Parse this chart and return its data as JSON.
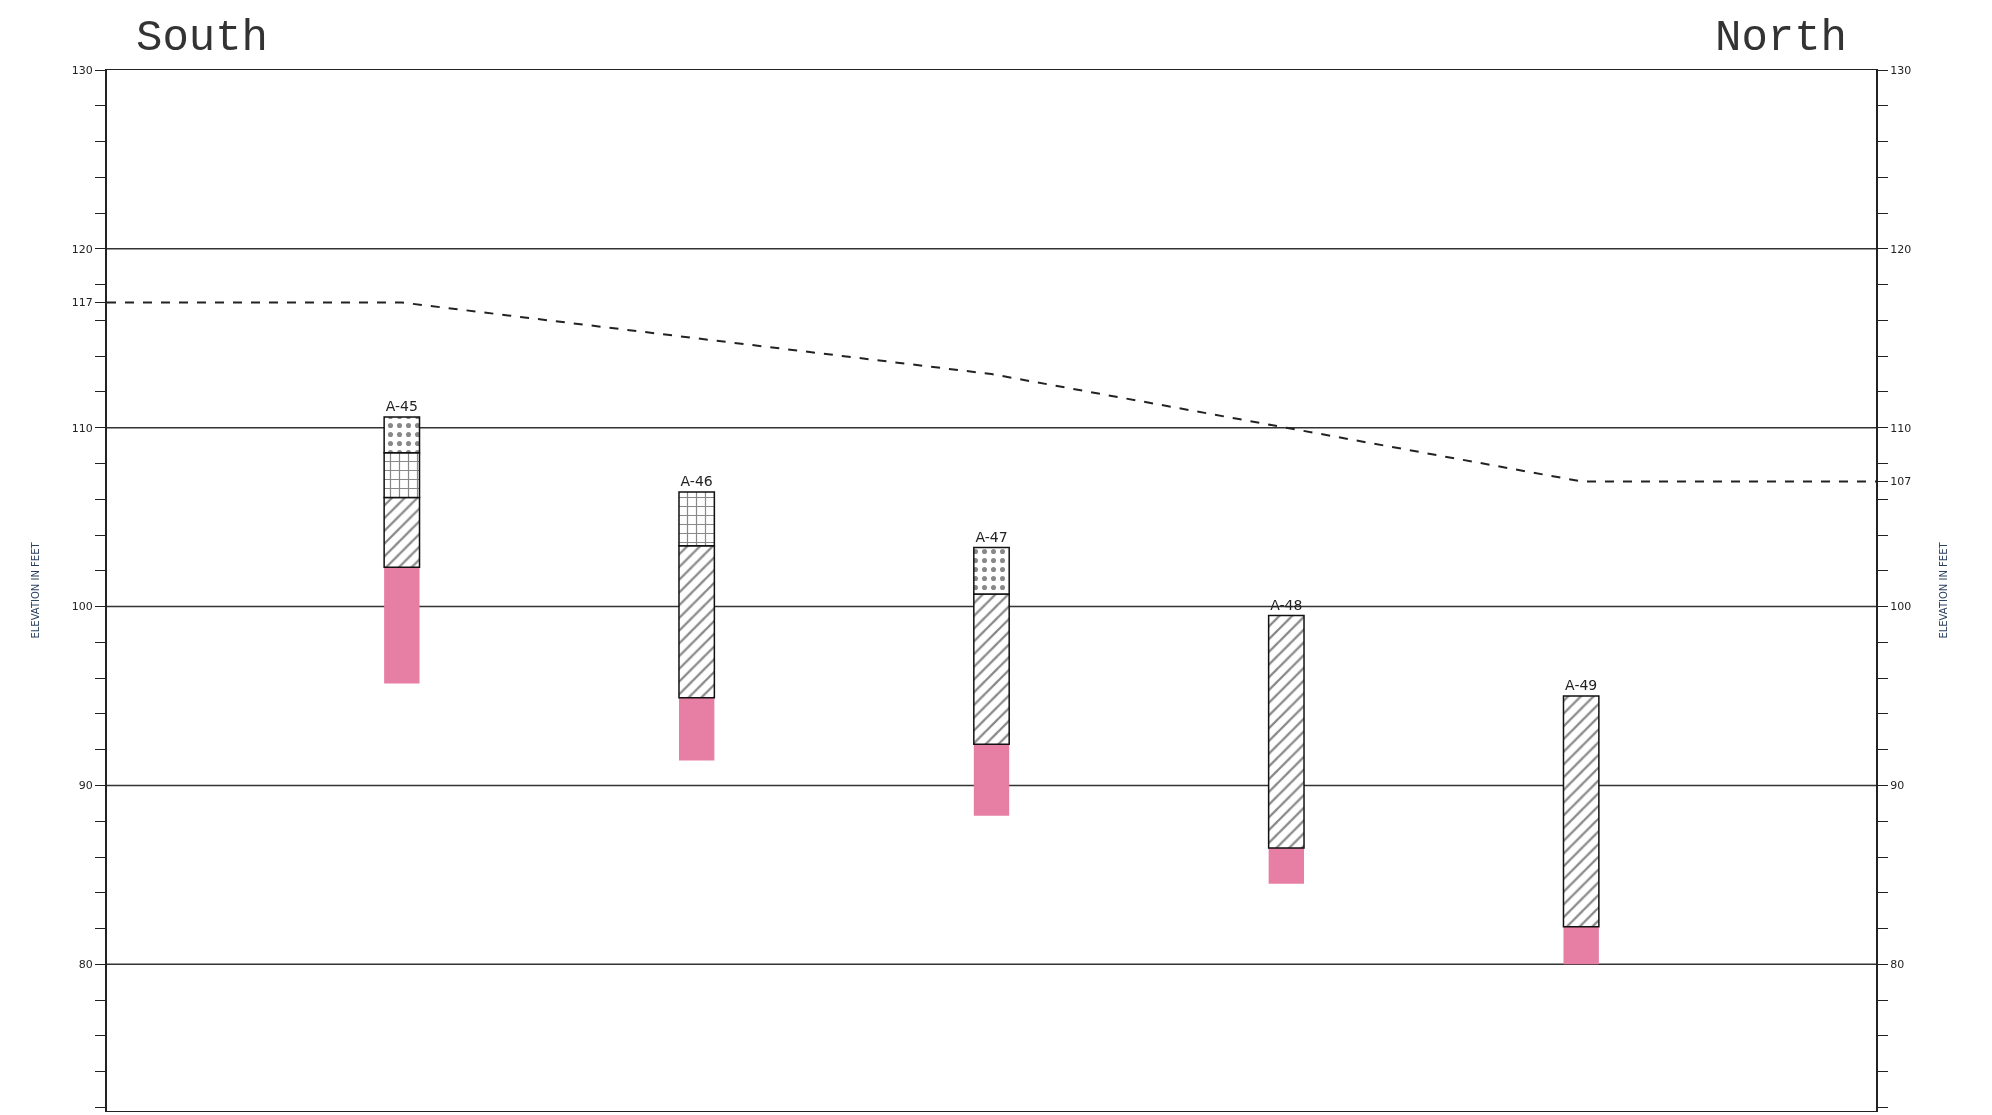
{
  "chart_data": {
    "type": "bar",
    "categories": [
      null,
      null,
      null,
      null,
      null,
      null,
      null
    ],
    "series": [
      {
        "color": "#e77ea3",
        "base": [
          null,
          95.7,
          91.4,
          88.3,
          84.5,
          80,
          null
        ],
        "values": [
          null,
          6.5,
          3.5,
          4.0,
          2.0,
          2.1,
          null
        ]
      },
      {
        "color": "#111111",
        "base": [
          null,
          102.2,
          94.9,
          92.3,
          86.5,
          82.1,
          null
        ],
        "values": [
          null,
          3.9,
          8.5,
          8.4,
          13.0,
          12.9,
          null
        ],
        "value_labels": [
          null,
          null,
          null,
          null,
          "A-48",
          "A-49",
          null
        ]
      },
      {
        "color": "#111111",
        "base": [
          null,
          106.1,
          103.4,
          null,
          null,
          null,
          null
        ],
        "values": [
          null,
          2.5,
          3.0,
          null,
          null,
          null,
          null
        ],
        "value_labels": [
          null,
          null,
          "A-46",
          null,
          null,
          null,
          null
        ]
      },
      {
        "color": "#111111",
        "base": [
          null,
          108.6,
          null,
          100.7,
          null,
          null,
          null
        ],
        "values": [
          null,
          2.0,
          null,
          2.6,
          null,
          null,
          null
        ],
        "value_labels": [
          null,
          "A-45",
          null,
          "A-47",
          null,
          null,
          null
        ]
      },
      {
        "type": "line",
        "line_style": "dashed",
        "marker": "none",
        "color": "#222222",
        "values": [
          117,
          117,
          115,
          113,
          110,
          107,
          107
        ]
      }
    ],
    "annotations": [
      "South",
      "North"
    ],
    "ylabel": "ELEVATION IN FEET",
    "y2label": "ELEVATION IN FEET",
    "ylim": [
      71.8,
      130
    ],
    "y2lim": [
      71.8,
      130
    ],
    "yticks": [
      {
        "value": 72,
        "label": null
      },
      {
        "value": 74,
        "label": null
      },
      {
        "value": 76,
        "label": null
      },
      {
        "value": 78,
        "label": null
      },
      80,
      {
        "value": 82,
        "label": null
      },
      {
        "value": 84,
        "label": null
      },
      {
        "value": 86,
        "label": null
      },
      {
        "value": 88,
        "label": null
      },
      90,
      {
        "value": 92,
        "label": null
      },
      {
        "value": 94,
        "label": null
      },
      {
        "value": 96,
        "label": null
      },
      {
        "value": 98,
        "label": null
      },
      100,
      {
        "value": 102,
        "label": null
      },
      {
        "value": 104,
        "label": null
      },
      {
        "value": 106,
        "label": null
      },
      {
        "value": 108,
        "label": null
      },
      110,
      {
        "value": 112,
        "label": null
      },
      {
        "value": 114,
        "label": null
      },
      {
        "value": 116,
        "label": null
      },
      117,
      {
        "value": 118,
        "label": null
      },
      120,
      {
        "value": 122,
        "label": null
      },
      {
        "value": 124,
        "label": null
      },
      {
        "value": 126,
        "label": null
      },
      {
        "value": 128,
        "label": null
      },
      130
    ],
    "y2ticks": [
      {
        "value": 72,
        "label": null
      },
      {
        "value": 74,
        "label": null
      },
      {
        "value": 76,
        "label": null
      },
      {
        "value": 78,
        "label": null
      },
      80,
      {
        "value": 82,
        "label": null
      },
      {
        "value": 84,
        "label": null
      },
      {
        "value": 86,
        "label": null
      },
      {
        "value": 88,
        "label": null
      },
      90,
      {
        "value": 92,
        "label": null
      },
      {
        "value": 94,
        "label": null
      },
      {
        "value": 96,
        "label": null
      },
      {
        "value": 98,
        "label": null
      },
      100,
      {
        "value": 102,
        "label": null
      },
      {
        "value": 104,
        "label": null
      },
      {
        "value": 106,
        "label": null
      },
      107,
      {
        "value": 108,
        "label": null
      },
      110,
      {
        "value": 112,
        "label": null
      },
      {
        "value": 114,
        "label": null
      },
      {
        "value": 116,
        "label": null
      },
      {
        "value": 118,
        "label": null
      },
      120,
      {
        "value": 122,
        "label": null
      },
      {
        "value": 124,
        "label": null
      },
      {
        "value": 126,
        "label": null
      },
      {
        "value": 128,
        "label": null
      },
      130
    ],
    "ref_lines": [
      {
        "axis": "y",
        "value": 80,
        "color": "#333333"
      },
      {
        "axis": "y",
        "value": 90,
        "color": "#333333"
      },
      {
        "axis": "y",
        "value": 100,
        "color": "#333333"
      },
      {
        "axis": "y",
        "value": 110,
        "color": "#333333"
      },
      {
        "axis": "y",
        "value": 120,
        "color": "#333333"
      }
    ],
    "tick_labels": "y"
  }
}
